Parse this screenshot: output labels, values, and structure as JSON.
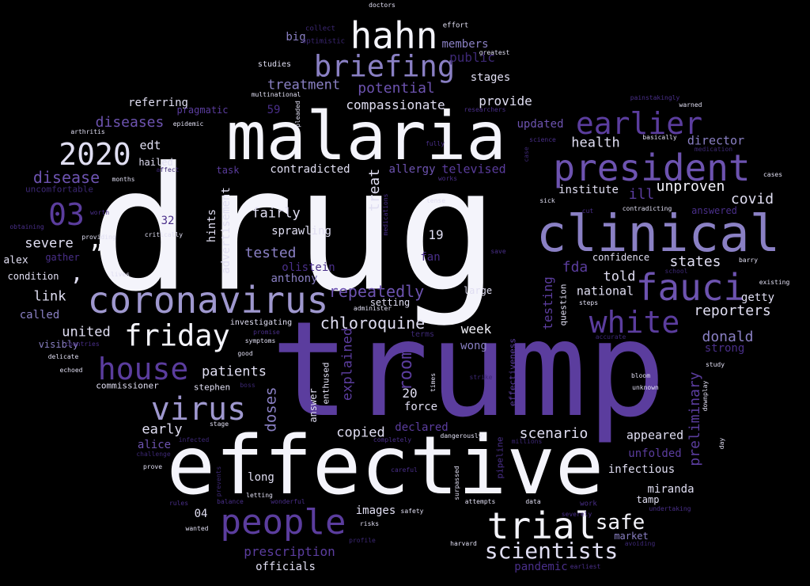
{
  "words": [
    {
      "text": "drug",
      "color": "#f4f4fb"
    },
    {
      "text": "trump",
      "color": "#5b3d9e"
    },
    {
      "text": "effective",
      "color": "#f4f4fb"
    },
    {
      "text": "malaria",
      "color": "#f4f4fb"
    },
    {
      "text": "clinical",
      "color": "#8a80c4"
    },
    {
      "text": "president",
      "color": "#6d53b0"
    },
    {
      "text": "coronavirus",
      "color": "#9f98cf"
    },
    {
      "text": "hahn",
      "color": "#f4f4fb"
    },
    {
      "text": "briefing",
      "color": "#8a80c4"
    },
    {
      "text": "people",
      "color": "#5b3d9e"
    },
    {
      "text": "trial",
      "color": "#f4f4fb"
    },
    {
      "text": "fauci",
      "color": "#6d53b0"
    },
    {
      "text": "earlier",
      "color": "#5b3d9e"
    },
    {
      "text": "white",
      "color": "#5b3d9e"
    },
    {
      "text": "virus",
      "color": "#9f98cf"
    },
    {
      "text": "house",
      "color": "#5b3d9e"
    },
    {
      "text": "friday",
      "color": "#f4f4fb"
    },
    {
      "text": "2020",
      "color": "#e0def2"
    },
    {
      "text": "03",
      "color": "#5b3d9e"
    },
    {
      "text": "scientists",
      "color": "#e0def2"
    },
    {
      "text": "safe",
      "color": "#f4f4fb"
    },
    {
      "text": "chloroquine",
      "color": "#e0def2"
    },
    {
      "text": "patients",
      "color": "#e0def2"
    },
    {
      "text": "repeatedly",
      "color": "#6d53b0"
    },
    {
      "text": "unproven",
      "color": "#f4f4fb"
    },
    {
      "text": "prescription",
      "color": "#5b3d9e"
    },
    {
      "text": "potential",
      "color": "#6d53b0"
    },
    {
      "text": "treatment",
      "color": "#8a80c4"
    },
    {
      "text": "disease",
      "color": "#6d53b0"
    },
    {
      "text": "diseases",
      "color": "#6d53b0"
    },
    {
      "text": "compassionate",
      "color": "#e0def2"
    },
    {
      "text": "provide",
      "color": "#e0def2"
    },
    {
      "text": "health",
      "color": "#e0def2"
    },
    {
      "text": "covid",
      "color": "#e0def2"
    },
    {
      "text": "states",
      "color": "#e0def2"
    },
    {
      "text": "reporters",
      "color": "#e0def2"
    },
    {
      "text": "donald",
      "color": "#8a80c4"
    },
    {
      "text": "united",
      "color": "#e0def2"
    },
    {
      "text": "tested",
      "color": "#8a80c4"
    },
    {
      "text": "fairly",
      "color": "#e0def2"
    },
    {
      "text": "severe",
      "color": "#e0def2"
    },
    {
      "text": "scenario",
      "color": "#e0def2"
    },
    {
      "text": "copied",
      "color": "#e0def2"
    },
    {
      "text": "early",
      "color": "#e0def2"
    },
    {
      "text": "edt",
      "color": "#e0def2"
    },
    {
      "text": "fda",
      "color": "#5b3d9e"
    },
    {
      "text": "told",
      "color": "#e0def2"
    },
    {
      "text": "ill",
      "color": "#5b3d9e"
    },
    {
      "text": "appeared",
      "color": "#e0def2"
    },
    {
      "text": "infectious",
      "color": "#e0def2"
    },
    {
      "text": "week",
      "color": "#f4f4fb"
    },
    {
      "text": "director",
      "color": "#8a80c4"
    },
    {
      "text": "institute",
      "color": "#e0def2"
    },
    {
      "text": "national",
      "color": "#e0def2"
    },
    {
      "text": "link",
      "color": "#e0def2"
    },
    {
      "text": "sprawling",
      "color": "#e0def2"
    },
    {
      "text": "anthony",
      "color": "#8a80c4"
    },
    {
      "text": "olistein",
      "color": "#4a2f8a"
    },
    {
      "text": "contradicted",
      "color": "#e0def2"
    },
    {
      "text": "televised",
      "color": "#5b3d9e"
    },
    {
      "text": "allergy",
      "color": "#6d53b0"
    },
    {
      "text": "updated",
      "color": "#6d53b0"
    },
    {
      "text": "stages",
      "color": "#e0def2"
    },
    {
      "text": "members",
      "color": "#8a80c4"
    },
    {
      "text": "big",
      "color": "#8a80c4"
    },
    {
      "text": "referring",
      "color": "#e0def2"
    },
    {
      "text": "pragmatic",
      "color": "#5b3d9e"
    },
    {
      "text": "hailed",
      "color": "#e0def2"
    },
    {
      "text": "task",
      "color": "#5b3d9e"
    },
    {
      "text": "declared",
      "color": "#5b3d9e"
    },
    {
      "text": "force",
      "color": "#e0def2"
    },
    {
      "text": "alice",
      "color": "#6d53b0"
    },
    {
      "text": "long",
      "color": "#e0def2"
    },
    {
      "text": "miranda",
      "color": "#e0def2"
    },
    {
      "text": "tamp",
      "color": "#e0def2"
    },
    {
      "text": "market",
      "color": "#8a80c4"
    },
    {
      "text": "pandemic",
      "color": "#4a2f8a"
    },
    {
      "text": "officials",
      "color": "#e0def2"
    },
    {
      "text": "images",
      "color": "#e0def2"
    },
    {
      "text": "wong",
      "color": "#8a80c4"
    },
    {
      "text": "strong",
      "color": "#4a2f8a"
    },
    {
      "text": "getty",
      "color": "#e0def2"
    },
    {
      "text": "unfolded",
      "color": "#5b3d9e"
    },
    {
      "text": "confidence",
      "color": "#e0def2"
    },
    {
      "text": "stephen",
      "color": "#e0def2"
    },
    {
      "text": "commissioner",
      "color": "#e0def2"
    },
    {
      "text": "visibly",
      "color": "#8a80c4"
    },
    {
      "text": "called",
      "color": "#8a80c4"
    },
    {
      "text": "condition",
      "color": "#e0def2"
    },
    {
      "text": "alex",
      "color": "#e0def2"
    },
    {
      "text": "gather",
      "color": "#4a2f8a"
    },
    {
      "text": "fan",
      "color": "#4a2f8a"
    },
    {
      "text": "setting",
      "color": "#e0def2"
    },
    {
      "text": "large",
      "color": "#e0def2"
    },
    {
      "text": "answered",
      "color": "#4a2f8a"
    },
    {
      "text": "uncomfortable",
      "color": "#3d2875"
    },
    {
      "text": "room",
      "color": "#5b3d9e"
    },
    {
      "text": "20",
      "color": "#e0def2"
    },
    {
      "text": "19",
      "color": "#e0def2"
    },
    {
      "text": "32",
      "color": "#4a2f8a"
    },
    {
      "text": "04",
      "color": "#e0def2"
    },
    {
      "text": "59",
      "color": "#4a2f8a"
    },
    {
      "text": "treat",
      "color": "#e0def2"
    },
    {
      "text": "doses",
      "color": "#8a80c4"
    },
    {
      "text": "explained",
      "color": "#5b3d9e"
    },
    {
      "text": "testing",
      "color": "#5b3d9e"
    },
    {
      "text": "preliminary",
      "color": "#5b3d9e"
    },
    {
      "text": "hints",
      "color": "#e0def2"
    },
    {
      "text": "advertisement",
      "color": "#e0def2"
    },
    {
      "text": "effectiveness",
      "color": "#5b3d9e"
    },
    {
      "text": "answer",
      "color": "#e0def2"
    },
    {
      "text": "enthused",
      "color": "#e0def2"
    },
    {
      "text": "pipeline",
      "color": "#4a2f8a"
    },
    {
      "text": "question",
      "color": "#e0def2"
    },
    {
      "text": "”",
      "color": "#f4f4fb"
    },
    {
      "text": ",",
      "color": "#e0def2"
    },
    {
      "text": "doctors",
      "color": "#e0def2"
    },
    {
      "text": "effort",
      "color": "#e0def2"
    },
    {
      "text": "collect",
      "color": "#3d2875"
    },
    {
      "text": "optimistic",
      "color": "#3d2875"
    },
    {
      "text": "greatest",
      "color": "#e0def2"
    },
    {
      "text": "studies",
      "color": "#e0def2"
    },
    {
      "text": "multinational",
      "color": "#e0def2"
    },
    {
      "text": "pleaded",
      "color": "#e0def2"
    },
    {
      "text": "researchers",
      "color": "#4a2f8a"
    },
    {
      "text": "painstakingly",
      "color": "#4a2f8a"
    },
    {
      "text": "warned",
      "color": "#e0def2"
    },
    {
      "text": "epidemic",
      "color": "#e0def2"
    },
    {
      "text": "arthritis",
      "color": "#e0def2"
    },
    {
      "text": "affect",
      "color": "#3d2875"
    },
    {
      "text": "basically",
      "color": "#e0def2"
    },
    {
      "text": "medication",
      "color": "#3d2875"
    },
    {
      "text": "science",
      "color": "#4a2f8a"
    },
    {
      "text": "fully",
      "color": "#4a2f8a"
    },
    {
      "text": "case",
      "color": "#3d2875"
    },
    {
      "text": "cases",
      "color": "#e0def2"
    },
    {
      "text": "months",
      "color": "#e0def2"
    },
    {
      "text": "works",
      "color": "#4a2f8a"
    },
    {
      "text": "tense",
      "color": "#e0def2"
    },
    {
      "text": "sick",
      "color": "#e0def2"
    },
    {
      "text": "medications",
      "color": "#4a2f8a"
    },
    {
      "text": "worth",
      "color": "#4a2f8a"
    },
    {
      "text": "cut",
      "color": "#4a2f8a"
    },
    {
      "text": "contradicting",
      "color": "#e0def2"
    },
    {
      "text": "obtaining",
      "color": "#4a2f8a"
    },
    {
      "text": "providing",
      "color": "#e0def2"
    },
    {
      "text": "critically",
      "color": "#e0def2"
    },
    {
      "text": "save",
      "color": "#4a2f8a"
    },
    {
      "text": "barry",
      "color": "#e0def2"
    },
    {
      "text": "school",
      "color": "#3d2875"
    },
    {
      "text": "existing",
      "color": "#e0def2"
    },
    {
      "text": "lives",
      "color": "#e0def2"
    },
    {
      "text": "steps",
      "color": "#e0def2"
    },
    {
      "text": "administer",
      "color": "#e0def2"
    },
    {
      "text": "accurate",
      "color": "#3d2875"
    },
    {
      "text": "investigating",
      "color": "#e0def2"
    },
    {
      "text": "promise",
      "color": "#4a2f8a"
    },
    {
      "text": "symptoms",
      "color": "#e0def2"
    },
    {
      "text": "terms",
      "color": "#3d2875"
    },
    {
      "text": "countries",
      "color": "#4a2f8a"
    },
    {
      "text": "delicate",
      "color": "#e0def2"
    },
    {
      "text": "good",
      "color": "#e0def2"
    },
    {
      "text": "echoed",
      "color": "#e0def2"
    },
    {
      "text": "boss",
      "color": "#3d2875"
    },
    {
      "text": "times",
      "color": "#e0def2"
    },
    {
      "text": "strike",
      "color": "#3d2875"
    },
    {
      "text": "bloom",
      "color": "#e0def2"
    },
    {
      "text": "study",
      "color": "#e0def2"
    },
    {
      "text": "unknown",
      "color": "#e0def2"
    },
    {
      "text": "downplay",
      "color": "#e0def2"
    },
    {
      "text": "day",
      "color": "#e0def2"
    },
    {
      "text": "stage",
      "color": "#e0def2"
    },
    {
      "text": "dangerously",
      "color": "#e0def2"
    },
    {
      "text": "completely",
      "color": "#4a2f8a"
    },
    {
      "text": "millions",
      "color": "#3d2875"
    },
    {
      "text": "challenge",
      "color": "#3d2875"
    },
    {
      "text": "infected",
      "color": "#3d2875"
    },
    {
      "text": "prove",
      "color": "#e0def2"
    },
    {
      "text": "careful",
      "color": "#4a2f8a"
    },
    {
      "text": "surpassed",
      "color": "#e0def2"
    },
    {
      "text": "prevents",
      "color": "#3d2875"
    },
    {
      "text": "letting",
      "color": "#e0def2"
    },
    {
      "text": "rules",
      "color": "#4a2f8a"
    },
    {
      "text": "balance",
      "color": "#4a2f8a"
    },
    {
      "text": "wonderful",
      "color": "#4a2f8a"
    },
    {
      "text": "attempts",
      "color": "#e0def2"
    },
    {
      "text": "data",
      "color": "#e0def2"
    },
    {
      "text": "work",
      "color": "#4a2f8a"
    },
    {
      "text": "undertaking",
      "color": "#4a2f8a"
    },
    {
      "text": "severely",
      "color": "#4a2f8a"
    },
    {
      "text": "safety",
      "color": "#e0def2"
    },
    {
      "text": "risks",
      "color": "#e0def2"
    },
    {
      "text": "wanted",
      "color": "#e0def2"
    },
    {
      "text": "profile",
      "color": "#3d2875"
    },
    {
      "text": "harvard",
      "color": "#e0def2"
    },
    {
      "text": "avoiding",
      "color": "#3d2875"
    },
    {
      "text": "earliest",
      "color": "#4a2f8a"
    },
    {
      "text": "public",
      "color": "#3d2875"
    },
    {
      "text": "-",
      "color": "#8a80c4"
    }
  ]
}
